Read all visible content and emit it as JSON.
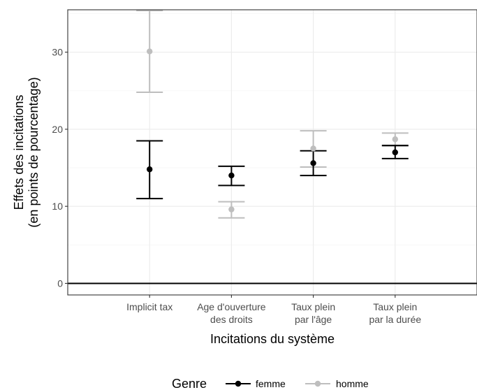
{
  "chart_data": {
    "type": "scatter",
    "subtype": "point-errorbar",
    "title": "",
    "xlabel": "Incitations du système",
    "ylabel": [
      "Effets des incitations",
      "(en points de pourcentage)"
    ],
    "ylim": [
      -1.5,
      35.5
    ],
    "yticks": [
      0,
      10,
      20,
      30
    ],
    "hline": 0,
    "grid": true,
    "categories": [
      [
        "Implicit tax"
      ],
      [
        "Age d'ouverture",
        "des droits"
      ],
      [
        "Taux plein",
        "par l'âge"
      ],
      [
        "Taux plein",
        "par la durée"
      ]
    ],
    "series": [
      {
        "name": "femme",
        "color": "#000000",
        "values": [
          14.8,
          14.0,
          15.6,
          17.0
        ],
        "lower": [
          11.0,
          12.7,
          14.0,
          16.2
        ],
        "upper": [
          18.5,
          15.2,
          17.2,
          17.9
        ]
      },
      {
        "name": "homme",
        "color": "#bebebe",
        "values": [
          30.1,
          9.6,
          17.5,
          18.7
        ],
        "lower": [
          24.8,
          8.5,
          15.1,
          17.8
        ],
        "upper": [
          35.4,
          10.6,
          19.8,
          19.5
        ]
      }
    ],
    "legend": {
      "title": "Genre",
      "position": "bottom"
    }
  }
}
